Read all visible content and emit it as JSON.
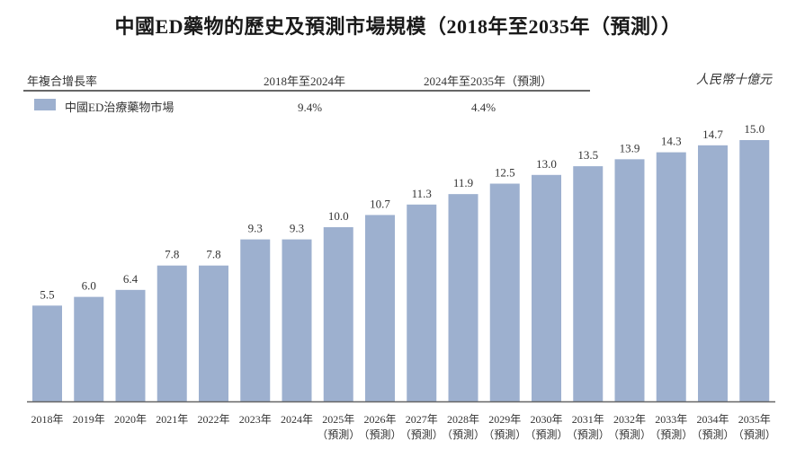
{
  "chart_data": {
    "type": "bar",
    "title": "中國ED藥物的歷史及預測市場規模（2018年至2035年（預測））",
    "unit": "人民幣十億元",
    "categories": [
      {
        "year": "2018年",
        "note": ""
      },
      {
        "year": "2019年",
        "note": ""
      },
      {
        "year": "2020年",
        "note": ""
      },
      {
        "year": "2021年",
        "note": ""
      },
      {
        "year": "2022年",
        "note": ""
      },
      {
        "year": "2023年",
        "note": ""
      },
      {
        "year": "2024年",
        "note": ""
      },
      {
        "year": "2025年",
        "note": "（預測）"
      },
      {
        "year": "2026年",
        "note": "（預測）"
      },
      {
        "year": "2027年",
        "note": "（預測）"
      },
      {
        "year": "2028年",
        "note": "（預測）"
      },
      {
        "year": "2029年",
        "note": "（預測）"
      },
      {
        "year": "2030年",
        "note": "（預測）"
      },
      {
        "year": "2031年",
        "note": "（預測）"
      },
      {
        "year": "2032年",
        "note": "（預測）"
      },
      {
        "year": "2033年",
        "note": "（預測）"
      },
      {
        "year": "2034年",
        "note": "（預測）"
      },
      {
        "year": "2035年",
        "note": "（預測）"
      }
    ],
    "series": [
      {
        "name": "中國ED治療藥物市場",
        "color": "#9db0cf",
        "values": [
          5.5,
          6.0,
          6.4,
          7.8,
          7.8,
          9.3,
          9.3,
          10.0,
          10.7,
          11.3,
          11.9,
          12.5,
          13.0,
          13.5,
          13.9,
          14.3,
          14.7,
          15.0
        ]
      }
    ],
    "ylim": [
      0,
      15.0
    ],
    "grid": false,
    "legend": "top-left"
  },
  "cagr_table": {
    "header_label": "年複合增長率",
    "period1": "2018年至2024年",
    "period2": "2024年至2035年（預測）",
    "row_label": "中國ED治療藥物市場",
    "value1": "9.4%",
    "value2": "4.4%"
  }
}
